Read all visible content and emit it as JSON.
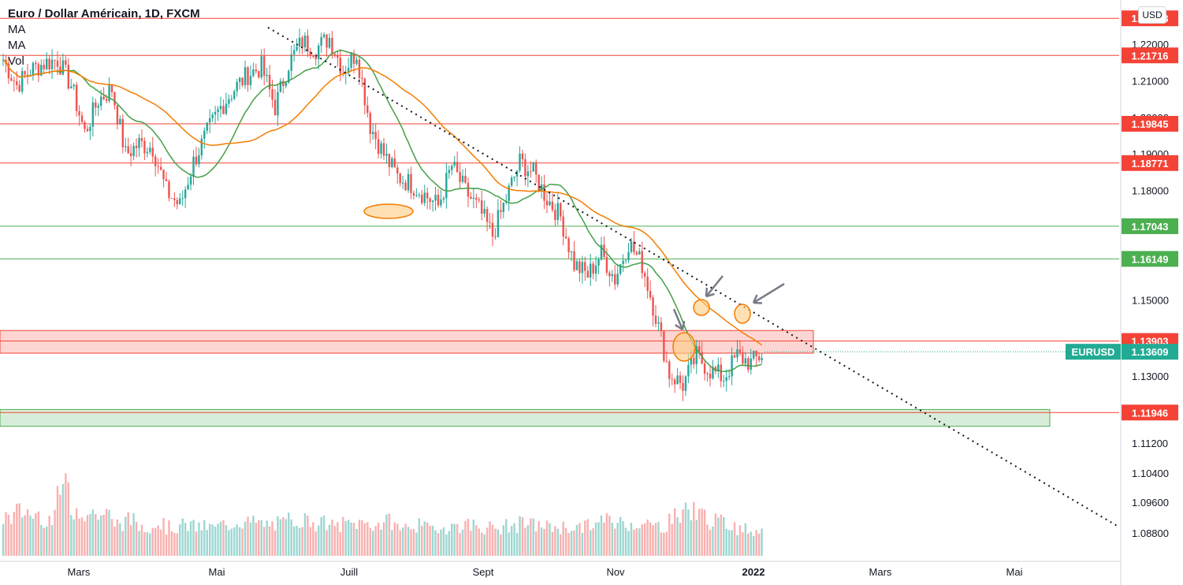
{
  "header": {
    "title": "Euro / Dollar Américain, 1D, FXCM",
    "indicators": [
      "MA",
      "MA",
      "Vol"
    ],
    "currency": "USD"
  },
  "colors": {
    "up": "#26a69a",
    "down": "#ef5350",
    "ma_fast": "#43a047",
    "ma_slow": "#f57c00",
    "level_red": "#f44336",
    "level_green": "#4caf50",
    "symbol_tag": "#22ab94"
  },
  "chart_data": {
    "type": "candlestick",
    "symbol": "EURUSD",
    "last_price": 1.13609,
    "x_tick_labels": [
      "Mars",
      "Mai",
      "Juill",
      "Sept",
      "Nov",
      "2022",
      "Mars",
      "Mai"
    ],
    "y_tick_labels": [
      "1.22000",
      "1.21000",
      "1.20000",
      "1.19000",
      "1.18000",
      "1.15000",
      "1.13000",
      "1.11200",
      "1.10400",
      "1.09600",
      "1.08800"
    ],
    "ylim": [
      1.0835,
      1.228
    ],
    "horizontal_levels": [
      {
        "value": 1.2273,
        "label": "1.23493",
        "color": "red"
      },
      {
        "value": 1.21716,
        "label": "1.21716",
        "color": "red"
      },
      {
        "value": 1.19845,
        "label": "1.19845",
        "color": "red"
      },
      {
        "value": 1.18771,
        "label": "1.18771",
        "color": "red"
      },
      {
        "value": 1.17043,
        "label": "1.17043",
        "color": "green"
      },
      {
        "value": 1.16149,
        "label": "1.16149",
        "color": "green"
      },
      {
        "value": 1.13903,
        "label": "1.13903",
        "color": "red"
      },
      {
        "value": 1.11946,
        "label": "1.11946",
        "color": "red"
      }
    ],
    "zones": [
      {
        "from": 1.1357,
        "to": 1.1419,
        "color": "red"
      },
      {
        "from": 1.1157,
        "to": 1.1203,
        "color": "green"
      }
    ],
    "trendline": {
      "from": [
        1.2248
      ],
      "to": [
        1.0884
      ]
    },
    "weekly_closes": [
      1.216,
      1.209,
      1.213,
      1.215,
      1.216,
      1.209,
      1.196,
      1.205,
      1.208,
      1.19,
      1.193,
      1.192,
      1.18,
      1.176,
      1.188,
      1.196,
      1.203,
      1.208,
      1.212,
      1.214,
      1.203,
      1.215,
      1.221,
      1.219,
      1.222,
      1.213,
      1.218,
      1.198,
      1.19,
      1.184,
      1.182,
      1.179,
      1.176,
      1.187,
      1.18,
      1.175,
      1.168,
      1.178,
      1.188,
      1.185,
      1.178,
      1.173,
      1.16,
      1.157,
      1.163,
      1.156,
      1.166,
      1.16,
      1.146,
      1.13,
      1.127,
      1.135,
      1.131,
      1.129,
      1.135,
      1.133,
      1.136
    ],
    "volume_rel": [
      0.55,
      0.62,
      0.58,
      0.52,
      0.95,
      0.66,
      0.6,
      0.58,
      0.46,
      0.5,
      0.42,
      0.45,
      0.4,
      0.43,
      0.41,
      0.4,
      0.44,
      0.48,
      0.47,
      0.44,
      0.45,
      0.52,
      0.5,
      0.46,
      0.42,
      0.45,
      0.46,
      0.44,
      0.48,
      0.4,
      0.43,
      0.39,
      0.4,
      0.42,
      0.44,
      0.4,
      0.38,
      0.42,
      0.45,
      0.43,
      0.41,
      0.4,
      0.4,
      0.44,
      0.5,
      0.47,
      0.46,
      0.44,
      0.42,
      0.55,
      0.66,
      0.58,
      0.48,
      0.45,
      0.38,
      0.36,
      0.4
    ]
  },
  "annotations": {
    "circles": 4,
    "arrows": 3
  }
}
